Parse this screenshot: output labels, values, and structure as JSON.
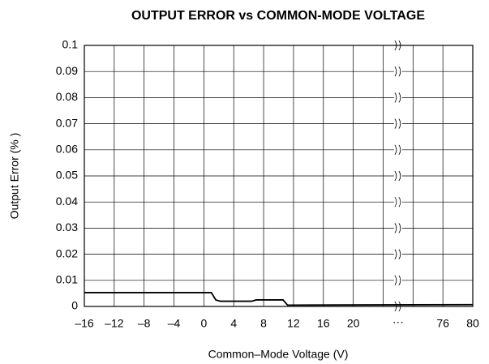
{
  "chart_data": {
    "type": "line",
    "title": "OUTPUT ERROR vs COMMON-MODE VOLTAGE",
    "xlabel": "Common–Mode Voltage (V)",
    "ylabel": "Output Error (% )",
    "x": [
      -16,
      1,
      1.6,
      2.2,
      6.4,
      7,
      10.6,
      11.2,
      80
    ],
    "series": [
      {
        "name": "Output Error",
        "color": "#000000",
        "values": [
          0.0053,
          0.0053,
          0.0025,
          0.002,
          0.002,
          0.0025,
          0.0025,
          0.0005,
          0.0007
        ]
      }
    ],
    "xlim": [
      -16,
      80
    ],
    "xbreak": [
      24,
      72
    ],
    "xbreak_label": "···",
    "xticks": [
      {
        "value": -16,
        "label": "–16"
      },
      {
        "value": -12,
        "label": "–12"
      },
      {
        "value": -8,
        "label": "–8"
      },
      {
        "value": -4,
        "label": "–4"
      },
      0,
      4,
      8,
      12,
      16,
      20,
      {
        "value": 24,
        "label": null
      },
      {
        "value": 72,
        "label": null
      },
      76,
      80
    ],
    "ylim": [
      0,
      0.1
    ],
    "yticks": [
      0,
      0.01,
      0.02,
      0.03,
      0.04,
      0.05,
      0.06,
      0.07,
      0.08,
      0.09,
      0.1
    ],
    "grid": true
  }
}
